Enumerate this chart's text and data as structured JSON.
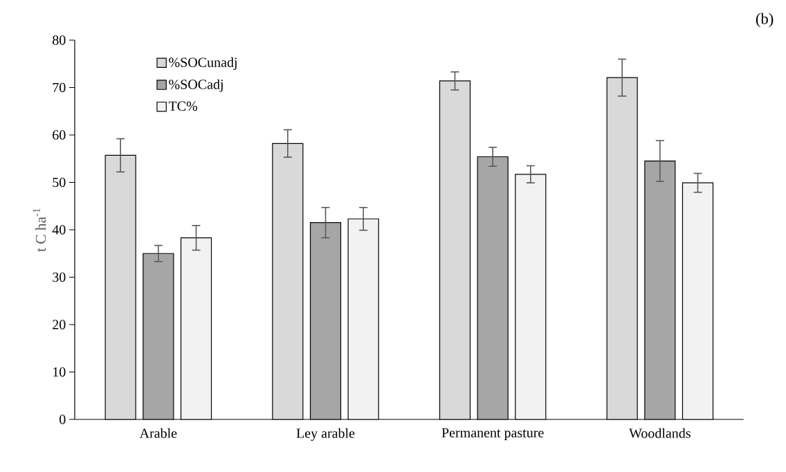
{
  "chart_data": {
    "type": "bar",
    "ylabel": "t C ha$^{-1}$",
    "annotations": [
      "(b)"
    ],
    "categories": [
      "Arable",
      "Ley arable",
      "Permanent pasture",
      "Woodlands"
    ],
    "series": [
      {
        "name": "%SOCunadj",
        "color": "#d9d9d9",
        "values": [
          55.7,
          58.2,
          71.4,
          72.1
        ],
        "errors": [
          3.5,
          2.9,
          1.9,
          3.9
        ]
      },
      {
        "name": "%SOCadj",
        "color": "#a6a6a6",
        "values": [
          35.0,
          41.5,
          55.4,
          54.5
        ],
        "errors": [
          1.7,
          3.2,
          2.0,
          4.3
        ]
      },
      {
        "name": "TC%",
        "color": "#f2f2f2",
        "values": [
          38.3,
          42.3,
          51.7,
          49.9
        ],
        "errors": [
          2.6,
          2.4,
          1.8,
          2.0
        ]
      }
    ],
    "ylim": [
      0,
      80
    ],
    "yticks": [
      0,
      10,
      20,
      30,
      40,
      50,
      60,
      70,
      80
    ],
    "grid": false,
    "legend": "top left"
  }
}
